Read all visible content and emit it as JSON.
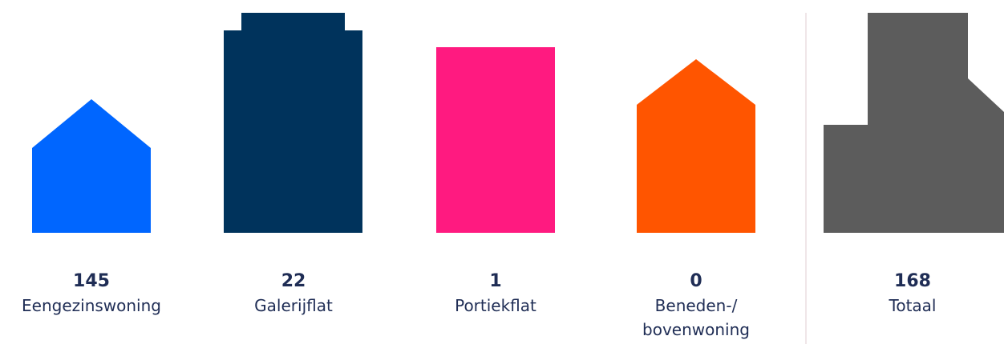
{
  "chart_data": {
    "type": "bar",
    "categories": [
      "Eengezinswoning",
      "Galerijflat",
      "Portiekflat",
      "Beneden-/ bovenwoning"
    ],
    "values": [
      145,
      22,
      1,
      0
    ],
    "category_lines": [
      [
        "Eengezinswoning"
      ],
      [
        "Galerijflat"
      ],
      [
        "Portiekflat"
      ],
      [
        "Beneden-/",
        "bovenwoning"
      ]
    ],
    "value_labels": [
      "145",
      "22",
      "1",
      "0"
    ],
    "total": {
      "label": "Totaal",
      "value": 168,
      "value_label": "168"
    },
    "colors": [
      "#0066ff",
      "#00335c",
      "#ff1a80",
      "#ff5500",
      "#5c5c5c"
    ],
    "icons": [
      "house-icon",
      "apartment-block-icon",
      "portiek-block-icon",
      "house-icon",
      "combined-buildings-icon"
    ],
    "grid": false,
    "legend": "none"
  }
}
